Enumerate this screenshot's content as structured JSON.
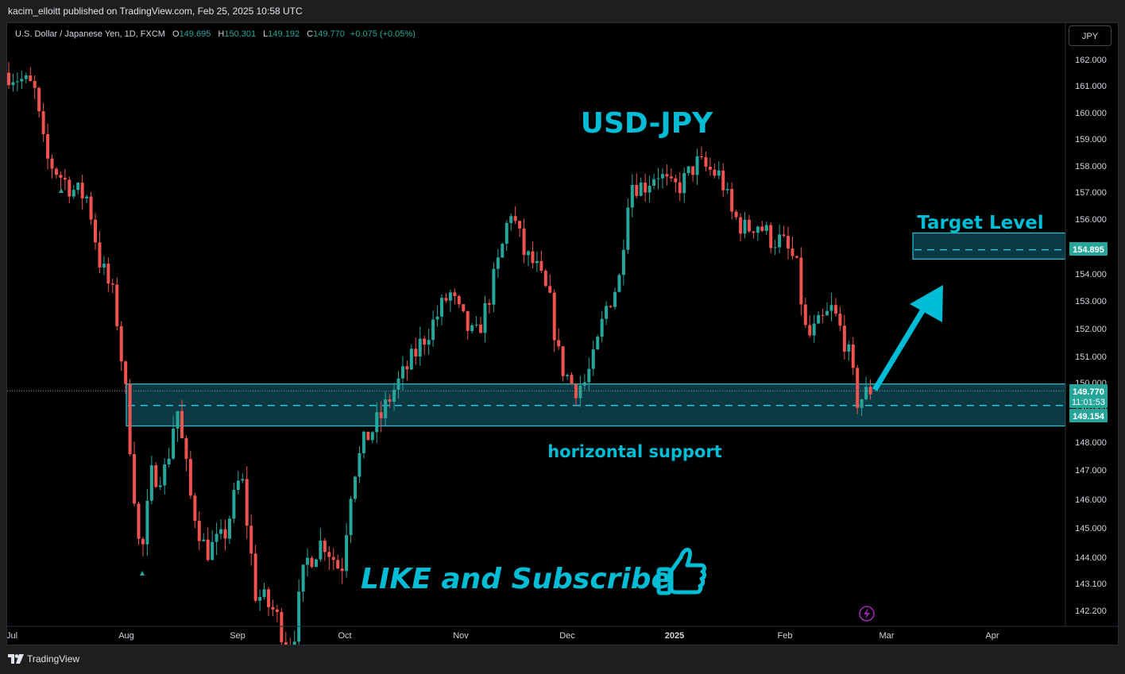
{
  "header": {
    "published": "kacim_elloitt published on TradingView.com, Feb 25, 2025 10:58 UTC"
  },
  "symbol": {
    "name": "U.S. Dollar / Japanese Yen, 1D, FXCM",
    "o_label": "O",
    "o_value": "149.695",
    "h_label": "H",
    "h_value": "150.301",
    "l_label": "L",
    "l_value": "149.192",
    "c_label": "C",
    "c_value": "149.770",
    "change": "+0.075 (+0.05%)"
  },
  "currency_button": "JPY",
  "footer": {
    "brand": "TradingView"
  },
  "colors": {
    "up": "#26a69a",
    "down": "#ef5350",
    "accent": "#00bcd4",
    "zone_fill": "#0b3a44",
    "background": "#000000"
  },
  "chart_data": {
    "type": "candlestick",
    "title": "USD-JPY",
    "annotations": [
      "Target Level",
      "horizontal support",
      "LIKE and Subscribe"
    ],
    "y_ticks": [
      "162.000",
      "161.000",
      "160.000",
      "159.000",
      "158.000",
      "157.000",
      "156.000",
      "155.000",
      "154.000",
      "153.000",
      "152.000",
      "151.000",
      "150.000",
      "149.000",
      "148.000",
      "147.000",
      "146.000",
      "145.000",
      "144.000",
      "143.100",
      "142.200"
    ],
    "x_ticks": [
      "Jul",
      "Aug",
      "Sep",
      "Oct",
      "Nov",
      "Dec",
      "2025",
      "Feb",
      "Mar",
      "Apr"
    ],
    "ylim": [
      141.8,
      162.2
    ],
    "price_labels": {
      "last": "149.770",
      "countdown": "11:01:53",
      "support": "149.154",
      "target": "154.895"
    },
    "support_zone": [
      148.5,
      149.95
    ],
    "support_level": 149.154,
    "target_zone": [
      154.55,
      155.5
    ],
    "target_level": 154.895,
    "close_path": [
      {
        "date": "Jul 1",
        "close": 161.5
      },
      {
        "date": "Jul 4",
        "close": 161.3
      },
      {
        "date": "Jul 8",
        "close": 160.9
      },
      {
        "date": "Jul 11",
        "close": 158.3
      },
      {
        "date": "Jul 15",
        "close": 157.6
      },
      {
        "date": "Jul 18",
        "close": 157.1
      },
      {
        "date": "Jul 22",
        "close": 156.8
      },
      {
        "date": "Jul 25",
        "close": 154.5
      },
      {
        "date": "Jul 29",
        "close": 153.0
      },
      {
        "date": "Aug 1",
        "close": 149.4
      },
      {
        "date": "Aug 5",
        "close": 143.7
      },
      {
        "date": "Aug 8",
        "close": 146.8
      },
      {
        "date": "Aug 12",
        "close": 147.0
      },
      {
        "date": "Aug 15",
        "close": 149.2
      },
      {
        "date": "Aug 19",
        "close": 146.0
      },
      {
        "date": "Aug 23",
        "close": 144.2
      },
      {
        "date": "Aug 28",
        "close": 144.6
      },
      {
        "date": "Sep 2",
        "close": 146.9
      },
      {
        "date": "Sep 6",
        "close": 142.8
      },
      {
        "date": "Sep 11",
        "close": 142.2
      },
      {
        "date": "Sep 16",
        "close": 140.9
      },
      {
        "date": "Sep 20",
        "close": 143.8
      },
      {
        "date": "Sep 25",
        "close": 144.6
      },
      {
        "date": "Sep 30",
        "close": 143.5
      },
      {
        "date": "Oct 3",
        "close": 146.8
      },
      {
        "date": "Oct 7",
        "close": 148.2
      },
      {
        "date": "Oct 10",
        "close": 148.6
      },
      {
        "date": "Oct 14",
        "close": 149.7
      },
      {
        "date": "Oct 17",
        "close": 150.4
      },
      {
        "date": "Oct 21",
        "close": 151.4
      },
      {
        "date": "Oct 25",
        "close": 152.3
      },
      {
        "date": "Oct 29",
        "close": 153.3
      },
      {
        "date": "Nov 1",
        "close": 152.4
      },
      {
        "date": "Nov 5",
        "close": 151.6
      },
      {
        "date": "Nov 8",
        "close": 152.7
      },
      {
        "date": "Nov 12",
        "close": 154.6
      },
      {
        "date": "Nov 15",
        "close": 156.4
      },
      {
        "date": "Nov 19",
        "close": 154.7
      },
      {
        "date": "Nov 22",
        "close": 154.3
      },
      {
        "date": "Nov 26",
        "close": 153.0
      },
      {
        "date": "Nov 29",
        "close": 150.7
      },
      {
        "date": "Dec 3",
        "close": 149.8
      },
      {
        "date": "Dec 6",
        "close": 150.0
      },
      {
        "date": "Dec 9",
        "close": 151.0
      },
      {
        "date": "Dec 12",
        "close": 152.7
      },
      {
        "date": "Dec 16",
        "close": 153.8
      },
      {
        "date": "Dec 19",
        "close": 157.4
      },
      {
        "date": "Dec 23",
        "close": 157.2
      },
      {
        "date": "Dec 27",
        "close": 157.8
      },
      {
        "date": "Dec 31",
        "close": 157.1
      },
      {
        "date": "Jan 3",
        "close": 157.3
      },
      {
        "date": "Jan 7",
        "close": 158.1
      },
      {
        "date": "Jan 10",
        "close": 157.9
      },
      {
        "date": "Jan 14",
        "close": 157.6
      },
      {
        "date": "Jan 17",
        "close": 156.2
      },
      {
        "date": "Jan 21",
        "close": 155.6
      },
      {
        "date": "Jan 24",
        "close": 155.9
      },
      {
        "date": "Jan 28",
        "close": 155.3
      },
      {
        "date": "Jan 31",
        "close": 155.2
      },
      {
        "date": "Feb 4",
        "close": 154.4
      },
      {
        "date": "Feb 7",
        "close": 151.6
      },
      {
        "date": "Feb 11",
        "close": 152.2
      },
      {
        "date": "Feb 14",
        "close": 152.7
      },
      {
        "date": "Feb 18",
        "close": 151.4
      },
      {
        "date": "Feb 21",
        "close": 149.3
      },
      {
        "date": "Feb 25",
        "close": 149.8
      }
    ]
  }
}
